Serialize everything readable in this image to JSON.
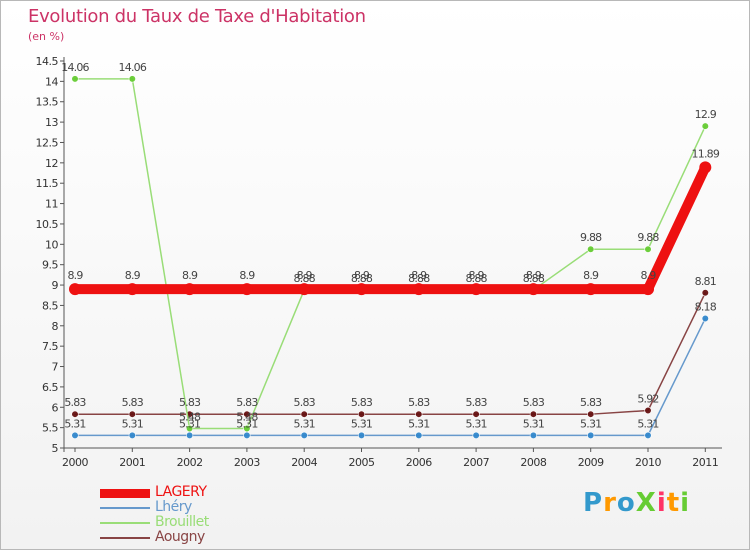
{
  "title": "Evolution du Taux de Taxe d'Habitation",
  "unit": "(en %)",
  "logo": {
    "text": "ProXiti",
    "colors": [
      "#3399cc",
      "#ff9900",
      "#3399cc",
      "#66cc33",
      "#ff3366",
      "#ff9900",
      "#66cc33"
    ]
  },
  "chart_data": {
    "type": "line",
    "title": "Evolution du Taux de Taxe d'Habitation",
    "ylabel": "(en %)",
    "xlabel": "",
    "ylim": [
      5,
      14.5
    ],
    "yticks": [
      5,
      5.5,
      6,
      6.5,
      7,
      7.5,
      8,
      8.5,
      9,
      9.5,
      10,
      10.5,
      11,
      11.5,
      12,
      12.5,
      13,
      13.5,
      14,
      14.5
    ],
    "ytick_labels": [
      "5",
      "5.5",
      "6",
      "6.5",
      "7",
      "7.5",
      "8",
      "8.5",
      "9",
      "9.5",
      "10",
      "10.5",
      "11",
      "11.5",
      "12",
      "12.5",
      "13",
      "13.5",
      "14",
      "14.5"
    ],
    "categories": [
      "2000",
      "2001",
      "2002",
      "2003",
      "2004",
      "2005",
      "2006",
      "2007",
      "2008",
      "2009",
      "2010",
      "2011"
    ],
    "series": [
      {
        "name": "Lhéry",
        "color": "#6699cc",
        "marker": "#3388cc",
        "values": [
          5.31,
          5.31,
          5.31,
          5.31,
          5.31,
          5.31,
          5.31,
          5.31,
          5.31,
          5.31,
          5.31,
          8.18
        ],
        "labels": [
          "5.31",
          "5.31",
          "5.31",
          "5.31",
          "5.31",
          "5.31",
          "5.31",
          "5.31",
          "5.31",
          "5.31",
          "5.31",
          "8.18"
        ]
      },
      {
        "name": "Aougny",
        "color": "#884444",
        "marker": "#661111",
        "values": [
          5.83,
          5.83,
          5.83,
          5.83,
          5.83,
          5.83,
          5.83,
          5.83,
          5.83,
          5.83,
          5.92,
          8.81
        ],
        "labels": [
          "5.83",
          "5.83",
          "5.83",
          "5.83",
          "5.83",
          "5.83",
          "5.83",
          "5.83",
          "5.83",
          "5.83",
          "5.92",
          "8.81"
        ]
      },
      {
        "name": "Brouillet",
        "color": "#99dd77",
        "marker": "#66cc33",
        "values": [
          14.06,
          14.06,
          5.48,
          5.48,
          8.88,
          8.88,
          8.88,
          8.88,
          8.88,
          9.88,
          9.88,
          12.9
        ],
        "labels": [
          "14.06",
          "14.06",
          "5.48",
          "5.48",
          "8.88",
          "8.88",
          "8.88",
          "8.88",
          "8.88",
          "9.88",
          "9.88",
          "12.9"
        ]
      },
      {
        "name": "LAGERY",
        "color": "#ee1111",
        "marker": "#ee1111",
        "values": [
          8.9,
          8.9,
          8.9,
          8.9,
          8.9,
          8.9,
          8.9,
          8.9,
          8.9,
          8.9,
          8.9,
          11.89
        ],
        "labels": [
          "8.9",
          "8.9",
          "8.9",
          "8.9",
          "8.9",
          "8.9",
          "8.9",
          "8.9",
          "8.9",
          "8.9",
          "8.9",
          "11.89"
        ]
      }
    ],
    "legend": [
      {
        "label": "LAGERY",
        "color": "#ee1111"
      },
      {
        "label": "Lhéry",
        "color": "#6699cc"
      },
      {
        "label": "Brouillet",
        "color": "#99dd77"
      },
      {
        "label": "Aougny",
        "color": "#884444"
      }
    ]
  }
}
